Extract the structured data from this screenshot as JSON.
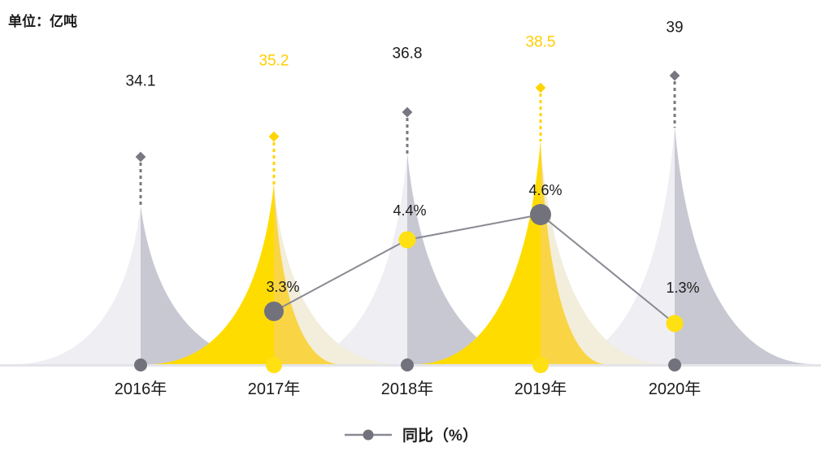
{
  "title": "单位：亿吨",
  "colors": {
    "yellow_bright": "#FFDC00",
    "yellow_dull": "#F9D545",
    "cream": "#F2EEDB",
    "gray_light": "#EEEEF3",
    "gray_medium": "#C8C8D3",
    "marker_gray": "#72727C",
    "marker_yellow": "#FFE013",
    "line": "#8A8A94",
    "stem_gray": "#787882",
    "stem_yellow": "#FFD400",
    "label_dark": "#1B1B1B",
    "label_yellow": "#FFCE00",
    "axis": "#E4E4EA"
  },
  "chart_data": {
    "type": "area+line",
    "unit_label": "单位：亿吨",
    "categories": [
      "2016年",
      "2017年",
      "2018年",
      "2019年",
      "2020年"
    ],
    "series": [
      {
        "name": "",
        "type": "area",
        "values": [
          34.1,
          35.2,
          36.8,
          38.5,
          39
        ],
        "labels": [
          "34.1",
          "35.2",
          "36.8",
          "38.5",
          "39"
        ]
      },
      {
        "name": "同比（%）",
        "type": "line",
        "values": [
          null,
          3.3,
          4.4,
          4.6,
          1.3
        ],
        "labels": [
          null,
          "3.3%",
          "4.4%",
          "4.6%",
          "1.3%"
        ]
      }
    ],
    "legend_position": "bottom",
    "grid": false,
    "ylim_note": "no visible axis scale; values shown as data labels above dashed peak stems"
  },
  "legend": {
    "label": "同比（%）"
  }
}
